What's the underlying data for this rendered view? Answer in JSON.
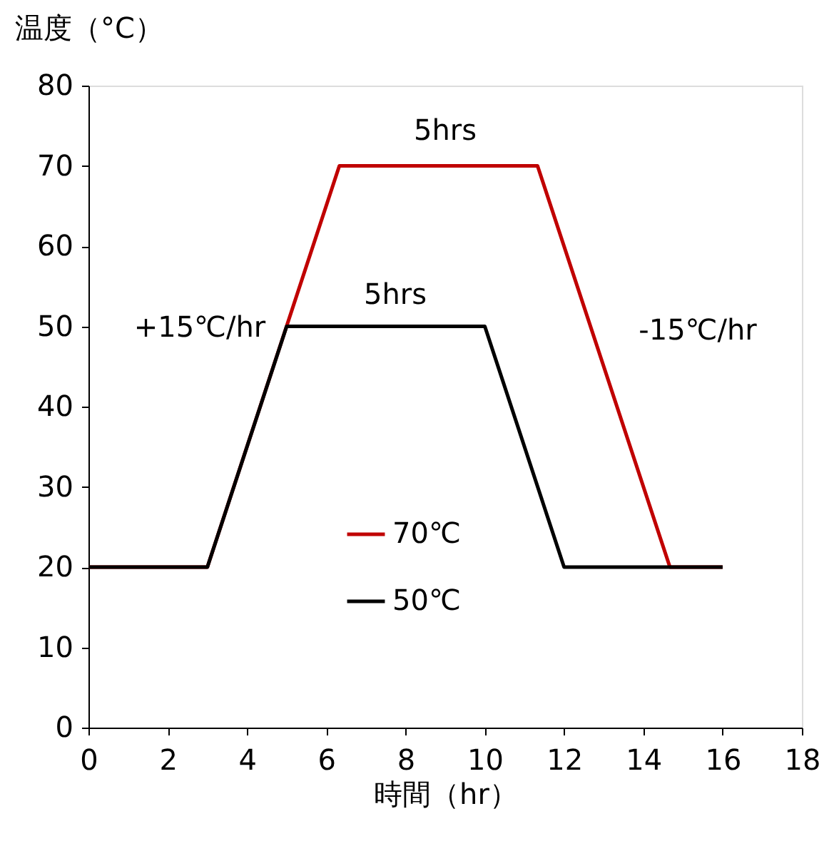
{
  "chart_data": {
    "type": "line",
    "xlabel": "時間（hr）",
    "ylabel": "温度（°C）",
    "xlim": [
      0,
      18
    ],
    "xticks": [
      0,
      2,
      4,
      6,
      8,
      10,
      12,
      14,
      16,
      18
    ],
    "ylim": [
      0,
      80
    ],
    "yticks": [
      0,
      10,
      20,
      30,
      40,
      50,
      60,
      70,
      80
    ],
    "series": [
      {
        "name": "70℃",
        "color": "#c00000",
        "x": [
          0,
          3,
          6.33,
          11.33,
          14.67,
          16
        ],
        "values": [
          20,
          20,
          70,
          70,
          20,
          20
        ]
      },
      {
        "name": "50℃",
        "color": "#000000",
        "x": [
          0,
          3,
          5,
          10,
          12,
          16
        ],
        "values": [
          20,
          20,
          50,
          50,
          20,
          20
        ]
      }
    ],
    "annotations": [
      "5hrs",
      "5hrs",
      "+15℃/hr",
      "-15℃/hr"
    ],
    "grid": false,
    "legend": "bottom",
    "marker": "none",
    "line_style": "solid"
  }
}
